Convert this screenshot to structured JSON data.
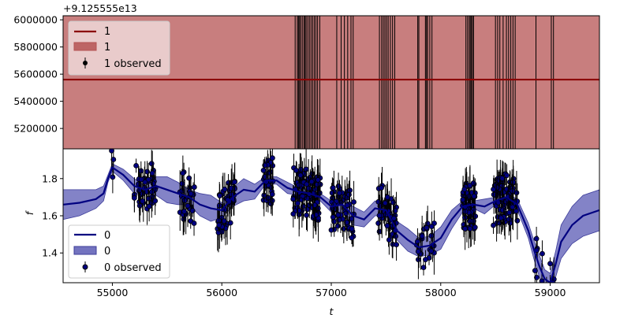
{
  "chart_data": [
    {
      "type": "line",
      "panel": "top",
      "offset_text": "+9.125555e13",
      "ylim": [
        5050000,
        6030000
      ],
      "xlim": [
        54550,
        59450
      ],
      "y_ticks": [
        {
          "v": 5200000,
          "label": "5200000"
        },
        {
          "v": 5400000,
          "label": "5400000"
        },
        {
          "v": 5600000,
          "label": "5600000"
        },
        {
          "v": 5800000,
          "label": "5800000"
        },
        {
          "v": 6000000,
          "label": "6000000"
        }
      ],
      "mean_level": 5560000,
      "legend": {
        "position": "upper left",
        "line": "1",
        "band": "1",
        "observed": "1 observed"
      },
      "obs_times": [
        56670,
        56690,
        56700,
        56710,
        56720,
        56735,
        56750,
        56760,
        56770,
        56785,
        56800,
        56815,
        56830,
        56845,
        56860,
        56875,
        56895,
        57050,
        57090,
        57120,
        57150,
        57180,
        57200,
        57440,
        57460,
        57475,
        57490,
        57505,
        57520,
        57540,
        57560,
        57580,
        57790,
        57800,
        57860,
        57870,
        57880,
        57900,
        57920,
        58230,
        58245,
        58260,
        58270,
        58280,
        58290,
        58300,
        58500,
        58520,
        58540,
        58570,
        58600,
        58620,
        58640,
        58660,
        58680,
        58870,
        59010,
        59030
      ],
      "colors": {
        "line": "#8b0000",
        "band": "#b55353",
        "marker": "#000000"
      }
    },
    {
      "type": "line",
      "panel": "bottom",
      "xlabel": "t",
      "ylabel": "f",
      "xlim": [
        54550,
        59450
      ],
      "ylim": [
        1.24,
        1.96
      ],
      "x_ticks": [
        {
          "v": 55000,
          "label": "55000"
        },
        {
          "v": 56000,
          "label": "56000"
        },
        {
          "v": 57000,
          "label": "57000"
        },
        {
          "v": 58000,
          "label": "58000"
        },
        {
          "v": 59000,
          "label": "59000"
        }
      ],
      "y_ticks": [
        {
          "v": 1.4,
          "label": "1.4"
        },
        {
          "v": 1.6,
          "label": "1.6"
        },
        {
          "v": 1.8,
          "label": "1.8"
        }
      ],
      "legend": {
        "position": "lower left",
        "line": "0",
        "band": "0",
        "observed": "0 observed"
      },
      "mean": {
        "x": [
          54550,
          54700,
          54850,
          54920,
          54960,
          55000,
          55100,
          55200,
          55300,
          55400,
          55500,
          55600,
          55700,
          55800,
          55900,
          56000,
          56100,
          56200,
          56300,
          56400,
          56500,
          56600,
          56700,
          56800,
          56900,
          57000,
          57100,
          57200,
          57300,
          57400,
          57500,
          57600,
          57700,
          57800,
          57900,
          58000,
          58100,
          58200,
          58300,
          58400,
          58500,
          58600,
          58700,
          58800,
          58850,
          58900,
          58950,
          59000,
          59050,
          59100,
          59200,
          59300,
          59450
        ],
        "y": [
          1.66,
          1.67,
          1.69,
          1.72,
          1.8,
          1.86,
          1.82,
          1.76,
          1.74,
          1.76,
          1.74,
          1.72,
          1.7,
          1.66,
          1.64,
          1.63,
          1.7,
          1.74,
          1.73,
          1.79,
          1.79,
          1.75,
          1.73,
          1.72,
          1.7,
          1.65,
          1.66,
          1.6,
          1.58,
          1.64,
          1.63,
          1.52,
          1.47,
          1.43,
          1.44,
          1.48,
          1.58,
          1.65,
          1.66,
          1.65,
          1.68,
          1.7,
          1.66,
          1.52,
          1.42,
          1.33,
          1.26,
          1.24,
          1.34,
          1.46,
          1.55,
          1.6,
          1.63
        ]
      },
      "band_halfwidth": [
        0.08,
        0.07,
        0.05,
        0.04,
        0.02,
        0.02,
        0.03,
        0.04,
        0.02,
        0.05,
        0.07,
        0.06,
        0.04,
        0.06,
        0.07,
        0.04,
        0.05,
        0.06,
        0.04,
        0.02,
        0.02,
        0.03,
        0.02,
        0.02,
        0.02,
        0.03,
        0.04,
        0.05,
        0.04,
        0.04,
        0.03,
        0.05,
        0.06,
        0.05,
        0.05,
        0.06,
        0.05,
        0.03,
        0.02,
        0.04,
        0.02,
        0.02,
        0.03,
        0.04,
        0.05,
        0.06,
        0.05,
        0.05,
        0.07,
        0.09,
        0.1,
        0.11,
        0.11
      ],
      "colors": {
        "line": "#000080",
        "band": "#5a5ab4",
        "marker": "#000080"
      }
    }
  ]
}
